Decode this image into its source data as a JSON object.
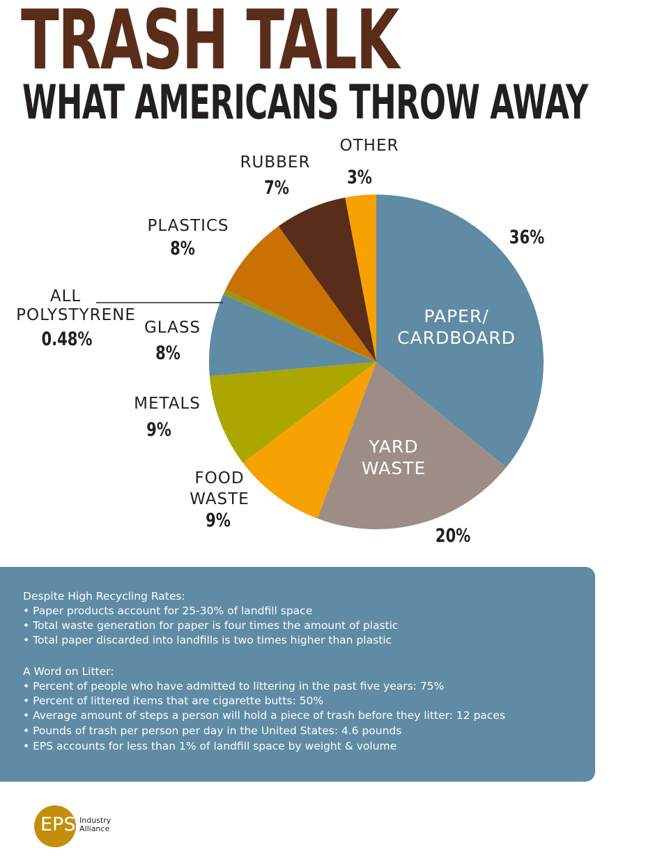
{
  "header": {
    "title": "TRASH TALK",
    "subtitle": "WHAT AMERICANS THROW AWAY"
  },
  "chart_data": {
    "type": "pie",
    "title": "TRASH TALK",
    "subtitle": "WHAT AMERICANS THROW AWAY",
    "start_angle_deg": 0,
    "direction": "clockwise",
    "slices": [
      {
        "label": "PAPER/ CARDBOARD",
        "value": 36,
        "display": "36%",
        "color": "#5f8ba4"
      },
      {
        "label": "YARD WASTE",
        "value": 20,
        "display": "20%",
        "color": "#9e8d86"
      },
      {
        "label": "FOOD WASTE",
        "value": 9,
        "display": "9%",
        "color": "#f7a102"
      },
      {
        "label": "METALS",
        "value": 9,
        "display": "9%",
        "color": "#aba600"
      },
      {
        "label": "GLASS",
        "value": 8,
        "display": "8%",
        "color": "#5f8ba4"
      },
      {
        "label": "ALL POLYSTYRENE",
        "value": 0.48,
        "display": "0.48%",
        "color": "#8f9a1d"
      },
      {
        "label": "PLASTICS",
        "value": 8,
        "display": "8%",
        "color": "#c97203"
      },
      {
        "label": "RUBBER",
        "value": 7,
        "display": "7%",
        "color": "#5a2d1a"
      },
      {
        "label": "OTHER",
        "value": 3,
        "display": "3%",
        "color": "#f7a102"
      }
    ],
    "labels": {
      "paper_line1": "PAPER/",
      "paper_line2": "CARDBOARD",
      "yard_line1": "YARD",
      "yard_line2": "WASTE",
      "food_line1": "FOOD",
      "food_line2": "WASTE",
      "metals": "METALS",
      "glass": "GLASS",
      "poly_line1": "ALL",
      "poly_line2": "POLYSTYRENE",
      "plastics": "PLASTICS",
      "rubber": "RUBBER",
      "other": "OTHER"
    },
    "legend": "none"
  },
  "info": {
    "recycling_heading": "Despite High Recycling Rates:",
    "recycling_points": [
      "• Paper products account for 25-30% of landfill space",
      "• Total waste generation for paper is four times the amount of plastic",
      "• Total paper discarded into landfills is two times higher than plastic"
    ],
    "litter_heading": "A Word on Litter:",
    "litter_points": [
      "• Percent of people who have admitted to littering in the past five years: 75%",
      "• Percent of littered items that are cigarette butts: 50%",
      "• Average amount of steps a person will hold a piece of trash before they litter: 12 paces",
      "• Pounds of trash per person per day in the United States: 4.6 pounds",
      "• EPS accounts for less than 1% of landfill space by weight & volume"
    ]
  },
  "logo": {
    "mark": "EPS",
    "line1": "Industry",
    "line2": "Alliance",
    "color": "#c48e0d"
  }
}
